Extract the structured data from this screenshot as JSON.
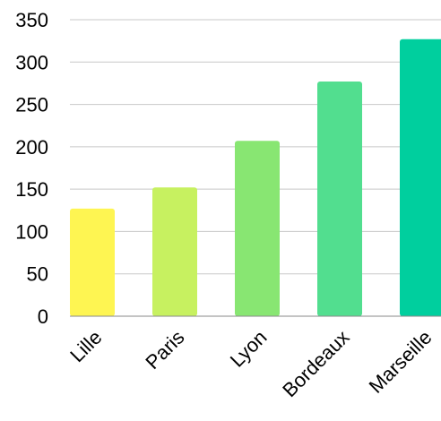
{
  "chart_data": {
    "type": "bar",
    "title": "",
    "xlabel": "",
    "ylabel": "",
    "categories": [
      "Lille",
      "Paris",
      "Lyon",
      "Bordeaux",
      "Marseille"
    ],
    "values": [
      127,
      152,
      207,
      277,
      327
    ],
    "colors": [
      "#fef552",
      "#c7f160",
      "#88e672",
      "#52de8f",
      "#00cf9e"
    ],
    "ylim": [
      0,
      350
    ],
    "yticks": [
      0,
      50,
      100,
      150,
      200,
      250,
      300,
      350
    ],
    "grid": true,
    "legend": "none"
  }
}
